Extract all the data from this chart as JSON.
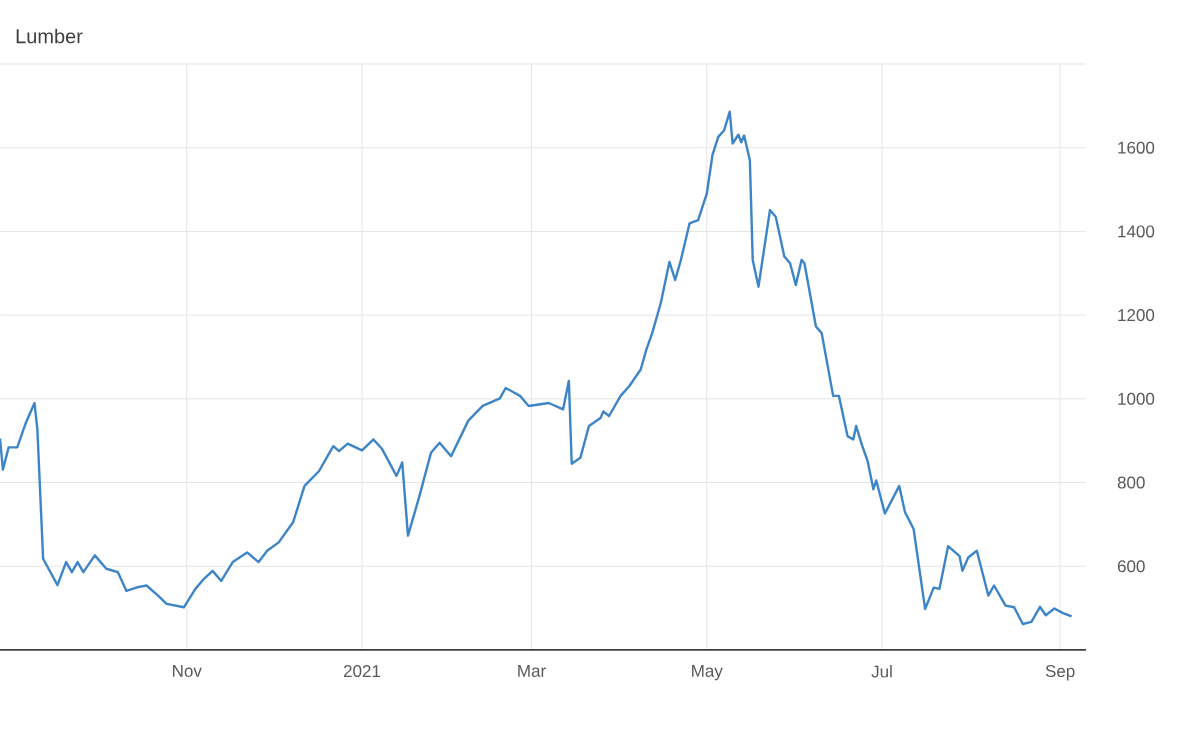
{
  "chart_data": {
    "type": "line",
    "title": "Lumber",
    "x": [
      "2020-08-28",
      "2020-08-29",
      "2020-08-31",
      "2020-09-03",
      "2020-09-06",
      "2020-09-09",
      "2020-09-10",
      "2020-09-12",
      "2020-09-17",
      "2020-09-20",
      "2020-09-22",
      "2020-09-24",
      "2020-09-26",
      "2020-09-30",
      "2020-10-04",
      "2020-10-08",
      "2020-10-11",
      "2020-10-15",
      "2020-10-18",
      "2020-10-22",
      "2020-10-25",
      "2020-10-31",
      "2020-11-04",
      "2020-11-07",
      "2020-11-10",
      "2020-11-13",
      "2020-11-17",
      "2020-11-22",
      "2020-11-26",
      "2020-11-29",
      "2020-12-03",
      "2020-12-08",
      "2020-12-12",
      "2020-12-17",
      "2020-12-22",
      "2020-12-24",
      "2020-12-27",
      "2021-01-01",
      "2021-01-05",
      "2021-01-08",
      "2021-01-13",
      "2021-01-15",
      "2021-01-17",
      "2021-01-21",
      "2021-01-25",
      "2021-01-28",
      "2021-02-01",
      "2021-02-07",
      "2021-02-12",
      "2021-02-18",
      "2021-02-20",
      "2021-02-25",
      "2021-02-28",
      "2021-03-07",
      "2021-03-12",
      "2021-03-14",
      "2021-03-15",
      "2021-03-18",
      "2021-03-21",
      "2021-03-25",
      "2021-03-26",
      "2021-03-28",
      "2021-04-01",
      "2021-04-04",
      "2021-04-08",
      "2021-04-10",
      "2021-04-12",
      "2021-04-15",
      "2021-04-18",
      "2021-04-20",
      "2021-04-22",
      "2021-04-25",
      "2021-04-28",
      "2021-05-01",
      "2021-05-03",
      "2021-05-05",
      "2021-05-07",
      "2021-05-09",
      "2021-05-10",
      "2021-05-12",
      "2021-05-13",
      "2021-05-14",
      "2021-05-16",
      "2021-05-17",
      "2021-05-19",
      "2021-05-23",
      "2021-05-25",
      "2021-05-28",
      "2021-05-30",
      "2021-06-01",
      "2021-06-03",
      "2021-06-04",
      "2021-06-08",
      "2021-06-10",
      "2021-06-14",
      "2021-06-16",
      "2021-06-19",
      "2021-06-21",
      "2021-06-22",
      "2021-06-24",
      "2021-06-26",
      "2021-06-28",
      "2021-06-29",
      "2021-07-02",
      "2021-07-07",
      "2021-07-09",
      "2021-07-12",
      "2021-07-16",
      "2021-07-19",
      "2021-07-21",
      "2021-07-24",
      "2021-07-28",
      "2021-07-29",
      "2021-07-31",
      "2021-08-03",
      "2021-08-07",
      "2021-08-09",
      "2021-08-13",
      "2021-08-16",
      "2021-08-19",
      "2021-08-22",
      "2021-08-25",
      "2021-08-27",
      "2021-08-30",
      "2021-09-02",
      "2021-09-05"
    ],
    "series": [
      {
        "color": "#3d85c6",
        "values": [
          905,
          831,
          884,
          884,
          943,
          990,
          927,
          618,
          555,
          610,
          586,
          610,
          586,
          626,
          594,
          586,
          541,
          550,
          554,
          530,
          510,
          502,
          546,
          570,
          589,
          565,
          610,
          633,
          610,
          637,
          657,
          705,
          792,
          827,
          887,
          875,
          893,
          877,
          903,
          880,
          816,
          848,
          673,
          768,
          871,
          895,
          863,
          948,
          983,
          1001,
          1026,
          1007,
          983,
          990,
          975,
          1043,
          845,
          859,
          935,
          954,
          970,
          959,
          1007,
          1030,
          1070,
          1118,
          1157,
          1229,
          1327,
          1284,
          1332,
          1419,
          1427,
          1490,
          1583,
          1626,
          1641,
          1686,
          1610,
          1631,
          1613,
          1629,
          1570,
          1332,
          1268,
          1451,
          1435,
          1340,
          1324,
          1272,
          1332,
          1324,
          1173,
          1157,
          1007,
          1007,
          911,
          903,
          935,
          890,
          851,
          784,
          805,
          726,
          792,
          729,
          689,
          498,
          549,
          546,
          648,
          624,
          589,
          621,
          637,
          530,
          554,
          506,
          502,
          462,
          467,
          503,
          483,
          499,
          488,
          480
        ]
      }
    ],
    "xlim": [
      "2020-08-28",
      "2021-09-10"
    ],
    "xticks": [
      {
        "value": "2020-11-01",
        "label": "Nov"
      },
      {
        "value": "2021-01-01",
        "label": "2021"
      },
      {
        "value": "2021-03-01",
        "label": "Mar"
      },
      {
        "value": "2021-05-01",
        "label": "May"
      },
      {
        "value": "2021-07-01",
        "label": "Jul"
      },
      {
        "value": "2021-09-01",
        "label": "Sep"
      }
    ],
    "ylim": [
      400,
      1800
    ],
    "yticks": [
      600,
      800,
      1000,
      1200,
      1400,
      1600,
      {
        "value": 1800,
        "label": null
      }
    ],
    "grid": true
  }
}
